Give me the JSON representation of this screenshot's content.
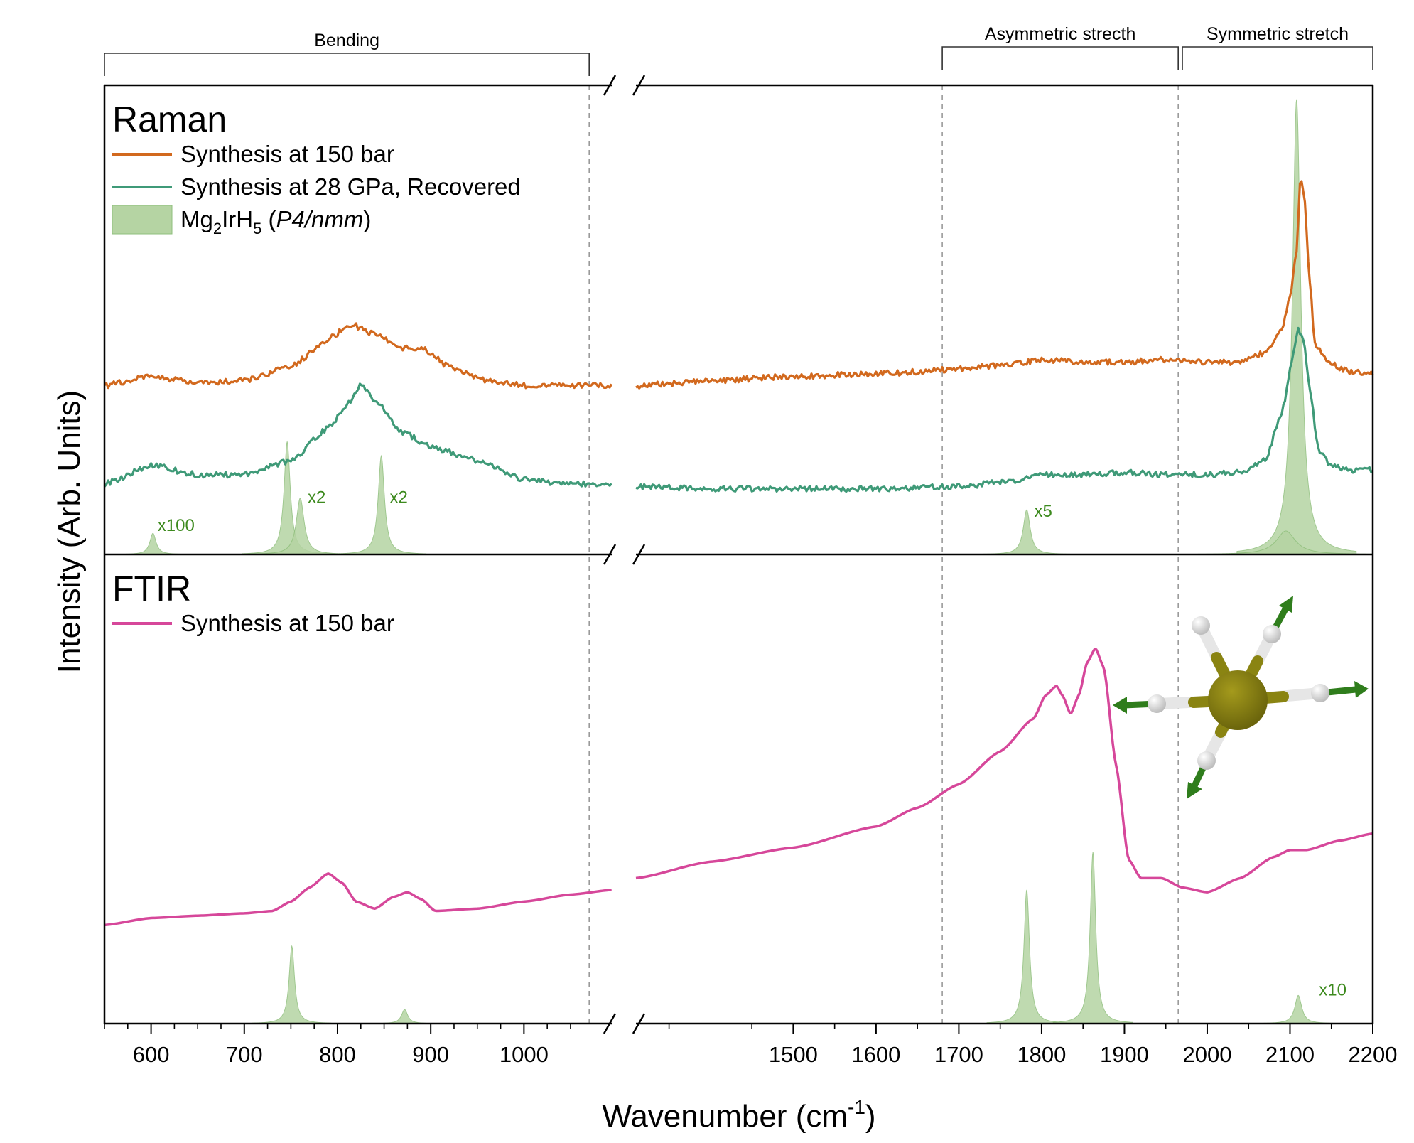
{
  "colors": {
    "orange": "#d2691e",
    "teal": "#3f9a78",
    "pink": "#d6479a",
    "green_fill": "#b5d4a3",
    "green_edge": "#8fbf7c",
    "annotation_green": "#3d8a1e",
    "gray_dash": "#9a9a9a"
  },
  "chart_data": {
    "type": "line",
    "xlabel_main": "Wavenumber (cm",
    "xlabel_sup": "-1",
    "xlabel_close": ")",
    "ylabel": "Intensity (Arb. Units)",
    "x_segments": [
      [
        550,
        1095
      ],
      [
        1310,
        2200
      ]
    ],
    "x_ticks": [
      {
        "v": 600,
        "label": "600"
      },
      {
        "v": 700,
        "label": "700"
      },
      {
        "v": 800,
        "label": "800"
      },
      {
        "v": 900,
        "label": "900"
      },
      {
        "v": 1000,
        "label": "1000"
      },
      {
        "v": 1500,
        "label": "1500"
      },
      {
        "v": 1600,
        "label": "1600"
      },
      {
        "v": 1700,
        "label": "1700"
      },
      {
        "v": 1800,
        "label": "1800"
      },
      {
        "v": 1900,
        "label": "1900"
      },
      {
        "v": 2000,
        "label": "2000"
      },
      {
        "v": 2100,
        "label": "2100"
      },
      {
        "v": 2200,
        "label": "2200"
      }
    ],
    "regions": [
      {
        "label": "Bending",
        "from": 550,
        "to": 1070
      },
      {
        "label": "Asymmetric strecth",
        "from": 1680,
        "to": 1965
      },
      {
        "label": "Symmetric stretch",
        "from": 1970,
        "to": 2200
      }
    ],
    "divider_lines": [
      1070,
      1680,
      1965
    ],
    "panels": [
      {
        "title": "Raman",
        "legend": [
          {
            "label": "Synthesis at 150 bar",
            "kind": "line",
            "color": "orange"
          },
          {
            "label": "Synthesis at 28 GPa, Recovered",
            "kind": "line",
            "color": "teal"
          },
          {
            "label_main": "Mg",
            "sub1": "2",
            "mid": "IrH",
            "sub2": "5",
            "paren_open": " (",
            "italic": "P4/nmm",
            "paren_close": ")",
            "kind": "fill",
            "color": "green_fill"
          }
        ],
        "series": [
          {
            "name": "Synthesis at 150 bar",
            "color": "orange",
            "points": [
              [
                550,
                0.36
              ],
              [
                600,
                0.38
              ],
              [
                650,
                0.365
              ],
              [
                700,
                0.37
              ],
              [
                750,
                0.4
              ],
              [
                790,
                0.46
              ],
              [
                815,
                0.49
              ],
              [
                840,
                0.47
              ],
              [
                870,
                0.44
              ],
              [
                890,
                0.44
              ],
              [
                920,
                0.4
              ],
              [
                960,
                0.37
              ],
              [
                1000,
                0.36
              ],
              [
                1050,
                0.36
              ],
              [
                1095,
                0.36
              ],
              [
                1310,
                0.36
              ],
              [
                1400,
                0.37
              ],
              [
                1500,
                0.38
              ],
              [
                1600,
                0.385
              ],
              [
                1700,
                0.395
              ],
              [
                1760,
                0.405
              ],
              [
                1800,
                0.415
              ],
              [
                1850,
                0.41
              ],
              [
                1900,
                0.41
              ],
              [
                1950,
                0.415
              ],
              [
                2000,
                0.41
              ],
              [
                2040,
                0.41
              ],
              [
                2070,
                0.43
              ],
              [
                2090,
                0.48
              ],
              [
                2100,
                0.55
              ],
              [
                2108,
                0.65
              ],
              [
                2113,
                0.81
              ],
              [
                2118,
                0.75
              ],
              [
                2123,
                0.6
              ],
              [
                2130,
                0.45
              ],
              [
                2145,
                0.41
              ],
              [
                2170,
                0.39
              ],
              [
                2200,
                0.385
              ]
            ]
          },
          {
            "name": "Synthesis at 28 GPa, Recovered",
            "color": "teal",
            "points": [
              [
                550,
                0.15
              ],
              [
                600,
                0.19
              ],
              [
                650,
                0.17
              ],
              [
                700,
                0.17
              ],
              [
                750,
                0.2
              ],
              [
                790,
                0.27
              ],
              [
                815,
                0.33
              ],
              [
                825,
                0.36
              ],
              [
                840,
                0.33
              ],
              [
                870,
                0.26
              ],
              [
                900,
                0.23
              ],
              [
                950,
                0.2
              ],
              [
                1000,
                0.16
              ],
              [
                1050,
                0.15
              ],
              [
                1095,
                0.15
              ],
              [
                1310,
                0.145
              ],
              [
                1400,
                0.14
              ],
              [
                1500,
                0.14
              ],
              [
                1600,
                0.14
              ],
              [
                1700,
                0.145
              ],
              [
                1760,
                0.155
              ],
              [
                1800,
                0.17
              ],
              [
                1850,
                0.17
              ],
              [
                1900,
                0.175
              ],
              [
                1950,
                0.17
              ],
              [
                2000,
                0.17
              ],
              [
                2040,
                0.175
              ],
              [
                2070,
                0.2
              ],
              [
                2090,
                0.3
              ],
              [
                2103,
                0.42
              ],
              [
                2110,
                0.48
              ],
              [
                2116,
                0.46
              ],
              [
                2123,
                0.36
              ],
              [
                2135,
                0.22
              ],
              [
                2150,
                0.19
              ],
              [
                2170,
                0.18
              ],
              [
                2200,
                0.18
              ]
            ]
          }
        ],
        "sticks": [
          {
            "center": 602,
            "height": 0.045,
            "width": 4
          },
          {
            "center": 746,
            "height": 0.24,
            "width": 4
          },
          {
            "center": 760,
            "height": 0.12,
            "width": 5
          },
          {
            "center": 847,
            "height": 0.21,
            "width": 4
          },
          {
            "center": 1782,
            "height": 0.095,
            "width": 5
          },
          {
            "center": 2108,
            "height": 0.97,
            "width": 6
          },
          {
            "center": 2095,
            "height": 0.05,
            "width": 14
          }
        ],
        "annotations": [
          {
            "x": 607,
            "y": 0.05,
            "label": "x100"
          },
          {
            "x": 768,
            "y": 0.11,
            "label": "x2"
          },
          {
            "x": 856,
            "y": 0.11,
            "label": "x2"
          },
          {
            "x": 1791,
            "y": 0.08,
            "label": "x5"
          }
        ]
      },
      {
        "title": "FTIR",
        "legend": [
          {
            "label": "Synthesis at 150 bar",
            "kind": "line",
            "color": "pink"
          }
        ],
        "series": [
          {
            "name": "Synthesis at 150 bar",
            "color": "pink",
            "points": [
              [
                550,
                0.21
              ],
              [
                600,
                0.225
              ],
              [
                650,
                0.23
              ],
              [
                700,
                0.235
              ],
              [
                730,
                0.24
              ],
              [
                750,
                0.26
              ],
              [
                770,
                0.29
              ],
              [
                790,
                0.32
              ],
              [
                805,
                0.3
              ],
              [
                820,
                0.26
              ],
              [
                840,
                0.245
              ],
              [
                860,
                0.27
              ],
              [
                875,
                0.28
              ],
              [
                890,
                0.265
              ],
              [
                905,
                0.24
              ],
              [
                950,
                0.245
              ],
              [
                1000,
                0.26
              ],
              [
                1050,
                0.275
              ],
              [
                1095,
                0.285
              ],
              [
                1310,
                0.31
              ],
              [
                1400,
                0.345
              ],
              [
                1500,
                0.375
              ],
              [
                1600,
                0.42
              ],
              [
                1650,
                0.46
              ],
              [
                1700,
                0.51
              ],
              [
                1750,
                0.58
              ],
              [
                1790,
                0.65
              ],
              [
                1805,
                0.7
              ],
              [
                1818,
                0.72
              ],
              [
                1825,
                0.7
              ],
              [
                1835,
                0.66
              ],
              [
                1845,
                0.7
              ],
              [
                1855,
                0.77
              ],
              [
                1865,
                0.8
              ],
              [
                1875,
                0.76
              ],
              [
                1890,
                0.55
              ],
              [
                1905,
                0.35
              ],
              [
                1920,
                0.31
              ],
              [
                1945,
                0.31
              ],
              [
                1970,
                0.29
              ],
              [
                2000,
                0.28
              ],
              [
                2040,
                0.31
              ],
              [
                2080,
                0.355
              ],
              [
                2100,
                0.37
              ],
              [
                2120,
                0.37
              ],
              [
                2160,
                0.39
              ],
              [
                2200,
                0.405
              ]
            ]
          }
        ],
        "sticks": [
          {
            "center": 751,
            "height": 0.165,
            "width": 3.5
          },
          {
            "center": 872,
            "height": 0.03,
            "width": 4
          },
          {
            "center": 1782,
            "height": 0.285,
            "width": 4
          },
          {
            "center": 1862,
            "height": 0.365,
            "width": 4
          },
          {
            "center": 2110,
            "height": 0.06,
            "width": 5
          }
        ],
        "annotations": [
          {
            "x": 2135,
            "y": 0.06,
            "label": "x10"
          }
        ]
      }
    ]
  }
}
